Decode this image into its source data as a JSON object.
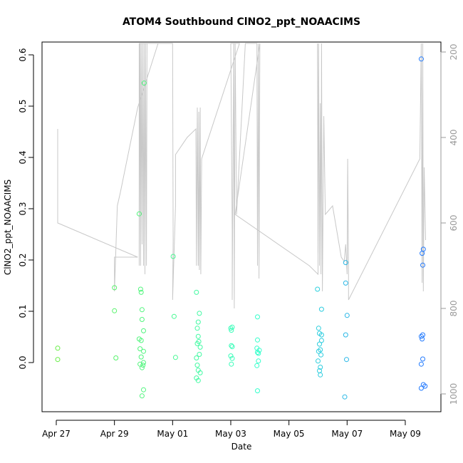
{
  "chart_data": {
    "type": "scatter",
    "title": "ATOM4 Southbound ClNO2_ppt_NOAACIMS",
    "xlabel": "Date",
    "ylabel": "ClNO2_ppt_NOAACIMS",
    "x_tick_labels": [
      "Apr 27",
      "Apr 29",
      "May 01",
      "May 03",
      "May 05",
      "May 07",
      "May 09"
    ],
    "x_tick_days": [
      0,
      2,
      4,
      6,
      8,
      10,
      12
    ],
    "y_ticks": [
      0.0,
      0.1,
      0.2,
      0.3,
      0.4,
      0.5,
      0.6
    ],
    "y_tick_labels": [
      "0.0",
      "0.1",
      "0.2",
      "0.3",
      "0.4",
      "0.5",
      "0.6"
    ],
    "ylim": [
      -0.08,
      0.62
    ],
    "y2_ticks": [
      200,
      400,
      600,
      800,
      1000
    ],
    "y2_tick_labels": [
      "200",
      "400",
      "600",
      "800",
      "1000"
    ],
    "y2lim": [
      1020,
      180
    ],
    "y2_reversed": true,
    "grid": false,
    "legend": "none",
    "point_colors": {
      "start": "#66ee44",
      "mid": "#33ffcc",
      "end": "#2277ff"
    },
    "line_color": "#c8c8c8",
    "points": [
      [
        0.05,
        0.028
      ],
      [
        0.05,
        0.006
      ],
      [
        2.0,
        0.146
      ],
      [
        2.0,
        0.101
      ],
      [
        2.05,
        0.009
      ],
      [
        2.85,
        0.29
      ],
      [
        2.9,
        0.143
      ],
      [
        2.92,
        0.137
      ],
      [
        2.95,
        0.103
      ],
      [
        2.95,
        0.084
      ],
      [
        3.0,
        0.062
      ],
      [
        2.85,
        0.046
      ],
      [
        2.92,
        0.043
      ],
      [
        2.88,
        0.027
      ],
      [
        3.0,
        0.022
      ],
      [
        2.92,
        0.011
      ],
      [
        3.0,
        0.0
      ],
      [
        2.98,
        -0.005
      ],
      [
        2.88,
        -0.003
      ],
      [
        2.95,
        -0.01
      ],
      [
        3.0,
        -0.053
      ],
      [
        2.95,
        -0.065
      ],
      [
        3.02,
        0.545
      ],
      [
        4.02,
        0.207
      ],
      [
        4.05,
        0.09
      ],
      [
        4.1,
        0.01
      ],
      [
        4.82,
        0.137
      ],
      [
        4.92,
        0.096
      ],
      [
        4.88,
        0.079
      ],
      [
        4.85,
        0.067
      ],
      [
        4.88,
        0.051
      ],
      [
        4.9,
        0.041
      ],
      [
        4.85,
        0.037
      ],
      [
        4.95,
        0.03
      ],
      [
        4.92,
        0.016
      ],
      [
        4.82,
        0.009
      ],
      [
        4.85,
        -0.005
      ],
      [
        4.88,
        -0.015
      ],
      [
        4.95,
        -0.02
      ],
      [
        4.82,
        -0.03
      ],
      [
        4.88,
        -0.035
      ],
      [
        6.0,
        0.067
      ],
      [
        6.05,
        0.069
      ],
      [
        6.02,
        0.063
      ],
      [
        6.02,
        0.033
      ],
      [
        6.05,
        0.031
      ],
      [
        6.0,
        0.013
      ],
      [
        6.05,
        0.008
      ],
      [
        6.02,
        -0.003
      ],
      [
        6.92,
        0.089
      ],
      [
        6.92,
        0.044
      ],
      [
        6.9,
        0.028
      ],
      [
        6.98,
        0.024
      ],
      [
        6.95,
        0.018
      ],
      [
        6.92,
        0.02
      ],
      [
        6.95,
        0.003
      ],
      [
        6.9,
        -0.006
      ],
      [
        6.92,
        -0.055
      ],
      [
        8.98,
        0.143
      ],
      [
        9.12,
        0.104
      ],
      [
        9.02,
        0.067
      ],
      [
        9.05,
        0.057
      ],
      [
        9.12,
        0.054
      ],
      [
        9.12,
        0.043
      ],
      [
        9.05,
        0.036
      ],
      [
        9.08,
        0.025
      ],
      [
        9.02,
        0.022
      ],
      [
        9.1,
        0.015
      ],
      [
        9.0,
        0.003
      ],
      [
        9.08,
        -0.009
      ],
      [
        9.05,
        -0.016
      ],
      [
        9.08,
        -0.024
      ],
      [
        9.95,
        0.195
      ],
      [
        9.95,
        0.155
      ],
      [
        10.0,
        0.092
      ],
      [
        9.95,
        0.054
      ],
      [
        9.98,
        0.006
      ],
      [
        9.92,
        -0.067
      ],
      [
        12.55,
        0.592
      ],
      [
        12.62,
        0.221
      ],
      [
        12.58,
        0.213
      ],
      [
        12.6,
        0.19
      ],
      [
        12.6,
        0.054
      ],
      [
        12.55,
        0.051
      ],
      [
        12.58,
        0.046
      ],
      [
        12.6,
        0.007
      ],
      [
        12.55,
        -0.003
      ],
      [
        12.62,
        -0.043
      ],
      [
        12.68,
        -0.046
      ],
      [
        12.55,
        -0.05
      ]
    ],
    "altitude_track": [
      [
        0.05,
        380
      ],
      [
        0.05,
        600
      ],
      [
        2.8,
        680
      ],
      [
        2.0,
        680
      ],
      [
        2.0,
        760
      ],
      [
        2.1,
        560
      ],
      [
        2.2,
        530
      ],
      [
        2.8,
        330
      ],
      [
        3.5,
        180
      ],
      [
        2.85,
        180
      ],
      [
        2.85,
        700
      ],
      [
        2.88,
        180
      ],
      [
        2.9,
        700
      ],
      [
        2.92,
        180
      ],
      [
        2.95,
        650
      ],
      [
        2.97,
        180
      ],
      [
        3.0,
        700
      ],
      [
        3.02,
        180
      ],
      [
        3.05,
        720
      ],
      [
        3.07,
        180
      ],
      [
        3.1,
        700
      ],
      [
        3.12,
        180
      ],
      [
        3.1,
        180
      ],
      [
        4.0,
        180
      ],
      [
        4.02,
        640
      ],
      [
        4.0,
        780
      ],
      [
        4.1,
        560
      ],
      [
        4.1,
        440
      ],
      [
        4.5,
        400
      ],
      [
        4.8,
        380
      ],
      [
        4.82,
        700
      ],
      [
        4.85,
        330
      ],
      [
        4.88,
        700
      ],
      [
        4.9,
        340
      ],
      [
        4.92,
        710
      ],
      [
        4.95,
        330
      ],
      [
        4.97,
        720
      ],
      [
        5.0,
        450
      ],
      [
        6.3,
        180
      ],
      [
        6.0,
        180
      ],
      [
        6.05,
        620
      ],
      [
        6.05,
        780
      ],
      [
        6.1,
        180
      ],
      [
        6.12,
        800
      ],
      [
        6.15,
        180
      ],
      [
        6.2,
        580
      ],
      [
        6.5,
        180
      ],
      [
        6.9,
        180
      ],
      [
        6.92,
        700
      ],
      [
        6.95,
        180
      ],
      [
        6.97,
        730
      ],
      [
        7.0,
        180
      ],
      [
        6.15,
        580
      ],
      [
        8.7,
        700
      ],
      [
        9.0,
        720
      ],
      [
        8.98,
        180
      ],
      [
        9.0,
        670
      ],
      [
        9.02,
        180
      ],
      [
        9.05,
        700
      ],
      [
        9.08,
        320
      ],
      [
        9.1,
        720
      ],
      [
        9.12,
        180
      ],
      [
        9.15,
        760
      ],
      [
        9.2,
        350
      ],
      [
        9.25,
        580
      ],
      [
        9.5,
        560
      ],
      [
        9.8,
        680
      ],
      [
        9.9,
        690
      ],
      [
        9.95,
        650
      ],
      [
        10.0,
        720
      ],
      [
        10.02,
        450
      ],
      [
        10.05,
        700
      ],
      [
        10.05,
        780
      ],
      [
        12.5,
        450
      ],
      [
        12.55,
        180
      ],
      [
        12.58,
        740
      ],
      [
        12.6,
        180
      ],
      [
        12.62,
        760
      ],
      [
        12.65,
        470
      ],
      [
        12.7,
        640
      ]
    ]
  }
}
